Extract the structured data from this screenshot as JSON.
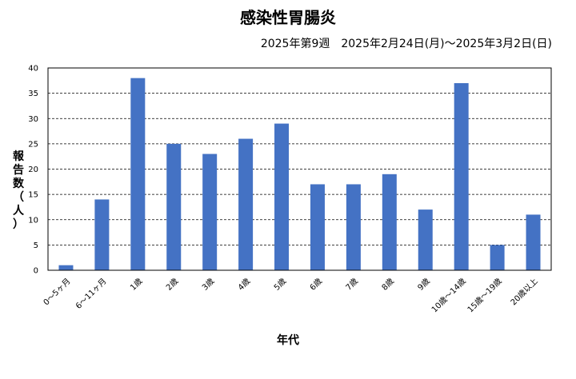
{
  "chart_data": {
    "type": "bar",
    "title": "感染性胃腸炎",
    "subtitle": "2025年第9週　2025年2月24日(月)～2025年3月2日(日)",
    "xlabel": "年代",
    "ylabel_chars": [
      "報",
      "告",
      "数",
      "（",
      "人",
      "）"
    ],
    "categories": [
      "0～5ヶ月",
      "6～11ヶ月",
      "1歳",
      "2歳",
      "3歳",
      "4歳",
      "5歳",
      "6歳",
      "7歳",
      "8歳",
      "9歳",
      "10歳～14歳",
      "15歳～19歳",
      "20歳以上"
    ],
    "values": [
      1,
      14,
      38,
      25,
      23,
      26,
      29,
      17,
      17,
      19,
      12,
      37,
      5,
      11
    ],
    "ylim": [
      0,
      40
    ],
    "yticks": [
      0,
      5,
      10,
      15,
      20,
      25,
      30,
      35,
      40
    ],
    "grid": "dashed-horizontal",
    "bar_color": "#4472c4"
  }
}
